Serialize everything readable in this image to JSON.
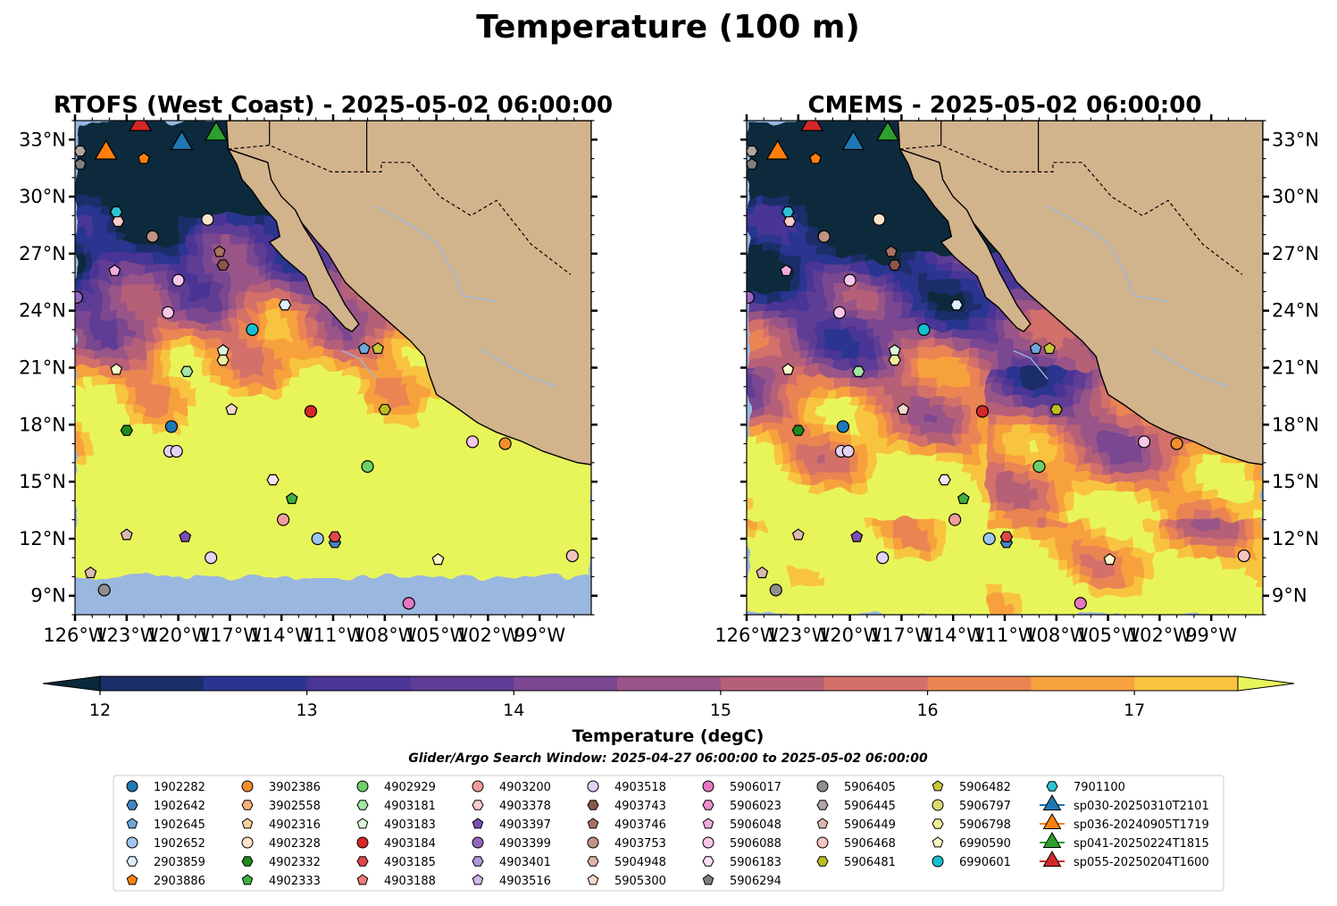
{
  "figure": {
    "title": "Temperature (100 m)",
    "search_window": "Glider/Argo Search Window: 2025-04-27 06:00:00 to 2025-05-02 06:00:00"
  },
  "colors": {
    "land": "#d2b48c",
    "ocean_nodata": "#9ab7e0",
    "rivers": "#9ab7e0",
    "coast": "#000000"
  },
  "chart_data": [
    {
      "type": "heatmap",
      "title": "RTOFS (West Coast) - 2025-05-02 06:00:00",
      "variable": "Temperature (100 m)",
      "xlim": [
        -126,
        -96
      ],
      "ylim": [
        8,
        34
      ],
      "x_ticks": [
        "126°W",
        "123°W",
        "120°W",
        "117°W",
        "114°W",
        "111°W",
        "108°W",
        "105°W",
        "102°W",
        "99°W"
      ],
      "y_ticks": [
        "9°N",
        "12°N",
        "15°N",
        "18°N",
        "21°N",
        "24°N",
        "27°N",
        "30°N",
        "33°N"
      ],
      "grid": false,
      "data_extent_south": 10.2
    },
    {
      "type": "heatmap",
      "title": "CMEMS - 2025-05-02 06:00:00",
      "variable": "Temperature (100 m)",
      "xlim": [
        -126,
        -96
      ],
      "ylim": [
        8,
        34
      ],
      "x_ticks": [
        "126°W",
        "123°W",
        "120°W",
        "117°W",
        "114°W",
        "111°W",
        "108°W",
        "105°W",
        "102°W",
        "99°W"
      ],
      "y_ticks": [
        "9°N",
        "12°N",
        "15°N",
        "18°N",
        "21°N",
        "24°N",
        "27°N",
        "30°N",
        "33°N"
      ],
      "grid": false
    }
  ],
  "colorbar": {
    "label": "Temperature (degC)",
    "min": 12,
    "max": 17.5,
    "step": 0.5,
    "ticks": [
      "12",
      "13",
      "14",
      "15",
      "16",
      "17"
    ],
    "colors": [
      "#0a2a3c",
      "#1a2f6a",
      "#2b3590",
      "#4a3496",
      "#5f3c95",
      "#7a4790",
      "#995488",
      "#b66078",
      "#d3706a",
      "#ea8552",
      "#f7a13e",
      "#f8c440",
      "#e8f55a"
    ],
    "extend": "both"
  },
  "legend": {
    "columns": [
      [
        {
          "label": "1902282",
          "marker": "circle",
          "color": "#1f77b4"
        },
        {
          "label": "1902642",
          "marker": "hexagon",
          "color": "#4287c2"
        },
        {
          "label": "1902645",
          "marker": "pentagon",
          "color": "#6ea8dc"
        },
        {
          "label": "1902652",
          "marker": "circle",
          "color": "#9ec5ed"
        },
        {
          "label": "2903859",
          "marker": "hexagon",
          "color": "#dceeff"
        },
        {
          "label": "2903886",
          "marker": "pentagon",
          "color": "#ff7f0e"
        }
      ],
      [
        {
          "label": "3902386",
          "marker": "circle",
          "color": "#f28e2b"
        },
        {
          "label": "3902558",
          "marker": "hexagon",
          "color": "#f7b47a"
        },
        {
          "label": "4902316",
          "marker": "pentagon",
          "color": "#fbcf9b"
        },
        {
          "label": "4902328",
          "marker": "circle",
          "color": "#fde3c8"
        },
        {
          "label": "4902332",
          "marker": "hexagon",
          "color": "#1e8a1e"
        },
        {
          "label": "4902333",
          "marker": "pentagon",
          "color": "#3fae3f"
        }
      ],
      [
        {
          "label": "4902929",
          "marker": "circle",
          "color": "#6ccf6c"
        },
        {
          "label": "4903181",
          "marker": "hexagon",
          "color": "#a6e6a6"
        },
        {
          "label": "4903183",
          "marker": "pentagon",
          "color": "#dcf8dc"
        },
        {
          "label": "4903184",
          "marker": "circle",
          "color": "#d62728"
        },
        {
          "label": "4903185",
          "marker": "hexagon",
          "color": "#e0474a"
        },
        {
          "label": "4903188",
          "marker": "pentagon",
          "color": "#ef7b7c"
        }
      ],
      [
        {
          "label": "4903200",
          "marker": "circle",
          "color": "#f29d9d"
        },
        {
          "label": "4903378",
          "marker": "hexagon",
          "color": "#fbcaca"
        },
        {
          "label": "4903397",
          "marker": "pentagon",
          "color": "#7b4fb0"
        },
        {
          "label": "4903399",
          "marker": "circle",
          "color": "#9467bd"
        },
        {
          "label": "4903401",
          "marker": "hexagon",
          "color": "#b396d6"
        },
        {
          "label": "4903516",
          "marker": "pentagon",
          "color": "#cfb8ee"
        }
      ],
      [
        {
          "label": "4903518",
          "marker": "circle",
          "color": "#e3d3f6"
        },
        {
          "label": "4903743",
          "marker": "hexagon",
          "color": "#8c564b"
        },
        {
          "label": "4903746",
          "marker": "pentagon",
          "color": "#a87365"
        },
        {
          "label": "4903753",
          "marker": "circle",
          "color": "#c49283"
        },
        {
          "label": "5904948",
          "marker": "hexagon",
          "color": "#dfb4a7"
        },
        {
          "label": "5905300",
          "marker": "pentagon",
          "color": "#f4d7cd"
        }
      ],
      [
        {
          "label": "5906017",
          "marker": "circle",
          "color": "#e377c2"
        },
        {
          "label": "5906023",
          "marker": "hexagon",
          "color": "#ea8fd0"
        },
        {
          "label": "5906048",
          "marker": "pentagon",
          "color": "#f2abdc"
        },
        {
          "label": "5906088",
          "marker": "circle",
          "color": "#f7c6e8"
        },
        {
          "label": "5906183",
          "marker": "hexagon",
          "color": "#fce0f2"
        },
        {
          "label": "5906294",
          "marker": "pentagon",
          "color": "#7f7f7f"
        }
      ],
      [
        {
          "label": "5906405",
          "marker": "circle",
          "color": "#8f8f8f"
        },
        {
          "label": "5906445",
          "marker": "hexagon",
          "color": "#b0a4a4"
        },
        {
          "label": "5906449",
          "marker": "pentagon",
          "color": "#dbb8b0"
        },
        {
          "label": "5906468",
          "marker": "circle",
          "color": "#f4c3c0"
        },
        {
          "label": "5906481",
          "marker": "hexagon",
          "color": "#bcbd22"
        }
      ],
      [
        {
          "label": "5906482",
          "marker": "pentagon",
          "color": "#c8c83a"
        },
        {
          "label": "5906797",
          "marker": "circle",
          "color": "#dada70"
        },
        {
          "label": "5906798",
          "marker": "hexagon",
          "color": "#eeee98"
        },
        {
          "label": "6990590",
          "marker": "pentagon",
          "color": "#fbfbc8"
        },
        {
          "label": "6990601",
          "marker": "circle",
          "color": "#17becf"
        }
      ],
      [
        {
          "label": "7901100",
          "marker": "hexagon",
          "color": "#2cc3d5"
        },
        {
          "label": "sp030-20250310T2101",
          "marker": "triangle",
          "color": "#1f77b4"
        },
        {
          "label": "sp036-20240905T1719",
          "marker": "triangle",
          "color": "#ff7f0e"
        },
        {
          "label": "sp041-20250224T1815",
          "marker": "triangle",
          "color": "#2ca02c"
        },
        {
          "label": "sp055-20250204T1600",
          "marker": "triangle",
          "color": "#d62728"
        }
      ]
    ]
  },
  "floats": [
    {
      "id": "1902282",
      "lon": -120.4,
      "lat": 17.9
    },
    {
      "id": "1902642",
      "lon": -110.9,
      "lat": 11.8
    },
    {
      "id": "1902645",
      "lon": -109.2,
      "lat": 22.0
    },
    {
      "id": "1902652",
      "lon": -111.9,
      "lat": 12.0
    },
    {
      "id": "2903859",
      "lon": -113.8,
      "lat": 24.3
    },
    {
      "id": "2903886",
      "lon": -122.0,
      "lat": 32.0
    },
    {
      "id": "3902386",
      "lon": -101.0,
      "lat": 17.0
    },
    {
      "id": "4902328",
      "lon": -118.3,
      "lat": 28.8
    },
    {
      "id": "4902332",
      "lon": -123.0,
      "lat": 17.7
    },
    {
      "id": "4902333",
      "lon": -113.4,
      "lat": 14.1
    },
    {
      "id": "4902929",
      "lon": -109.0,
      "lat": 15.8
    },
    {
      "id": "4903181",
      "lon": -119.5,
      "lat": 20.8
    },
    {
      "id": "4903183",
      "lon": -117.4,
      "lat": 21.9
    },
    {
      "id": "4903184",
      "lon": -112.3,
      "lat": 18.7
    },
    {
      "id": "4903185",
      "lon": -110.9,
      "lat": 12.1
    },
    {
      "id": "4903200",
      "lon": -113.9,
      "lat": 13.0
    },
    {
      "id": "4903378",
      "lon": -123.5,
      "lat": 28.7
    },
    {
      "id": "4903397",
      "lon": -119.6,
      "lat": 12.1
    },
    {
      "id": "4903399",
      "lon": -125.9,
      "lat": 24.7
    },
    {
      "id": "4903518",
      "lon": -120.5,
      "lat": 16.6
    },
    {
      "id": "4903518",
      "lon": -120.1,
      "lat": 16.6
    },
    {
      "id": "4903518",
      "lon": -118.1,
      "lat": 11.0
    },
    {
      "id": "4903743",
      "lon": -117.4,
      "lat": 26.4
    },
    {
      "id": "4903746",
      "lon": -117.6,
      "lat": 27.1
    },
    {
      "id": "4903753",
      "lon": -121.5,
      "lat": 27.9
    },
    {
      "id": "5905300",
      "lon": -116.9,
      "lat": 18.8
    },
    {
      "id": "5906017",
      "lon": -106.6,
      "lat": 8.6
    },
    {
      "id": "5906048",
      "lon": -123.7,
      "lat": 26.1
    },
    {
      "id": "5906088",
      "lon": -102.9,
      "lat": 17.1
    },
    {
      "id": "5906088",
      "lon": -120.0,
      "lat": 25.6
    },
    {
      "id": "5906088",
      "lon": -120.6,
      "lat": 23.9
    },
    {
      "id": "5906183",
      "lon": -114.5,
      "lat": 15.1
    },
    {
      "id": "5906294",
      "lon": -125.7,
      "lat": 31.7
    },
    {
      "id": "5906405",
      "lon": -124.3,
      "lat": 9.3
    },
    {
      "id": "5906445",
      "lon": -125.7,
      "lat": 32.4
    },
    {
      "id": "5906449",
      "lon": -125.1,
      "lat": 10.2
    },
    {
      "id": "5906449",
      "lon": -123.0,
      "lat": 12.2
    },
    {
      "id": "5906468",
      "lon": -97.1,
      "lat": 11.1
    },
    {
      "id": "5906481",
      "lon": -108.0,
      "lat": 18.8
    },
    {
      "id": "5906482",
      "lon": -108.4,
      "lat": 22.0
    },
    {
      "id": "5906798",
      "lon": -117.4,
      "lat": 21.4
    },
    {
      "id": "6990590",
      "lon": -123.6,
      "lat": 20.9
    },
    {
      "id": "6990590",
      "lon": -104.9,
      "lat": 10.9
    },
    {
      "id": "6990601",
      "lon": -115.7,
      "lat": 23.0
    },
    {
      "id": "7901100",
      "lon": -123.6,
      "lat": 29.2
    }
  ],
  "gliders": [
    {
      "id": "sp030-20250310T2101",
      "lon": -119.8,
      "lat": 32.8
    },
    {
      "id": "sp036-20240905T1719",
      "lon": -124.2,
      "lat": 32.3
    },
    {
      "id": "sp041-20250224T1815",
      "lon": -117.8,
      "lat": 33.3
    },
    {
      "id": "sp055-20250204T1600",
      "lon": -122.2,
      "lat": 33.8
    }
  ]
}
